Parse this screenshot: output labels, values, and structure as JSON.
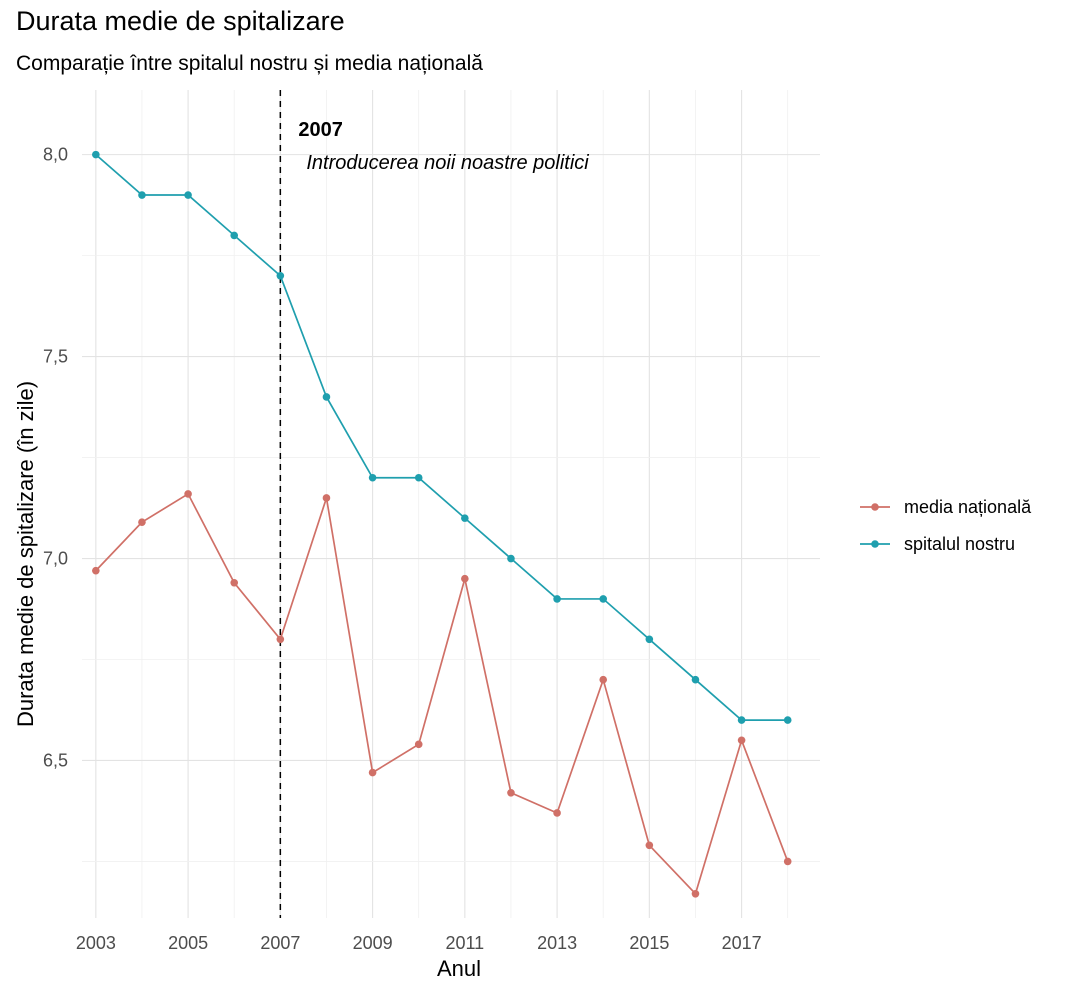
{
  "chart_data": {
    "type": "line",
    "title": "Durata medie de spitalizare",
    "subtitle": "Comparație între spitalul nostru și media națională",
    "xlabel": "Anul",
    "ylabel": "Durata medie de spitalizare (în zile)",
    "x": [
      2003,
      2004,
      2005,
      2006,
      2007,
      2008,
      2009,
      2010,
      2011,
      2012,
      2013,
      2014,
      2015,
      2016,
      2017,
      2018
    ],
    "x_ticks": [
      2003,
      2005,
      2007,
      2009,
      2011,
      2013,
      2015,
      2017
    ],
    "x_tick_labels": [
      "2003",
      "2005",
      "2007",
      "2009",
      "2011",
      "2013",
      "2015",
      "2017"
    ],
    "xlim": [
      2002.7,
      2018.7
    ],
    "y_ticks": [
      6.5,
      7.0,
      7.5,
      8.0
    ],
    "y_tick_labels": [
      "6,5",
      "7,0",
      "7,5",
      "8,0"
    ],
    "ylim": [
      6.11,
      8.16
    ],
    "grid": true,
    "legend_position": "right",
    "series": [
      {
        "name": "media națională",
        "color": "#d07067",
        "values": [
          6.97,
          7.09,
          7.16,
          6.94,
          6.8,
          7.15,
          6.47,
          6.54,
          6.95,
          6.42,
          6.37,
          6.7,
          6.29,
          6.17,
          6.55,
          6.25
        ]
      },
      {
        "name": "spitalul nostru",
        "color": "#1f9fae",
        "values": [
          8.0,
          7.9,
          7.9,
          7.8,
          7.7,
          7.4,
          7.2,
          7.2,
          7.1,
          7.0,
          6.9,
          6.9,
          6.8,
          6.7,
          6.6,
          6.6
        ]
      }
    ],
    "annotations": [
      {
        "x": 2007,
        "line": "dashed",
        "label_year": "2007",
        "label_text": "Introducerea noii noastre politici"
      }
    ]
  }
}
